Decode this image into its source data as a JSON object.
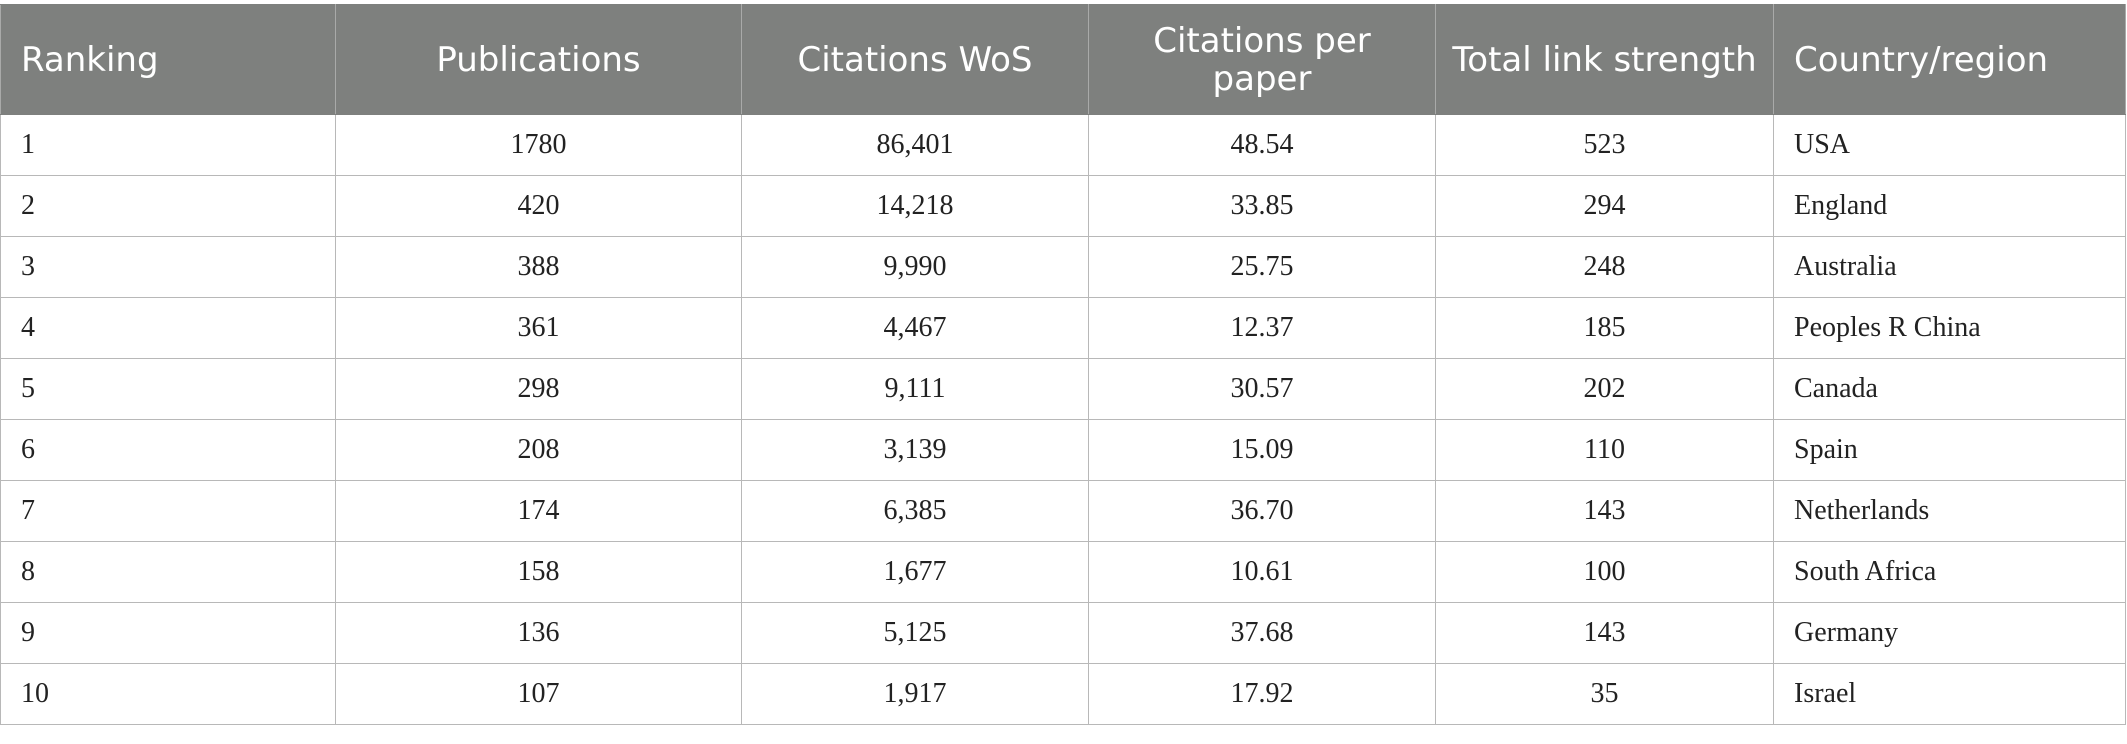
{
  "table": {
    "headers": [
      "Ranking",
      "Publications",
      "Citations WoS",
      "Citations per paper",
      "Total link strength",
      "Country/region"
    ],
    "rows": [
      [
        "1",
        "1780",
        "86,401",
        "48.54",
        "523",
        "USA"
      ],
      [
        "2",
        "420",
        "14,218",
        "33.85",
        "294",
        "England"
      ],
      [
        "3",
        "388",
        "9,990",
        "25.75",
        "248",
        "Australia"
      ],
      [
        "4",
        "361",
        "4,467",
        "12.37",
        "185",
        "Peoples R China"
      ],
      [
        "5",
        "298",
        "9,111",
        "30.57",
        "202",
        "Canada"
      ],
      [
        "6",
        "208",
        "3,139",
        "15.09",
        "110",
        "Spain"
      ],
      [
        "7",
        "174",
        "6,385",
        "36.70",
        "143",
        "Netherlands"
      ],
      [
        "8",
        "158",
        "1,677",
        "10.61",
        "100",
        "South Africa"
      ],
      [
        "9",
        "136",
        "5,125",
        "37.68",
        "143",
        "Germany"
      ],
      [
        "10",
        "107",
        "1,917",
        "17.92",
        "35",
        "Israel"
      ]
    ]
  }
}
